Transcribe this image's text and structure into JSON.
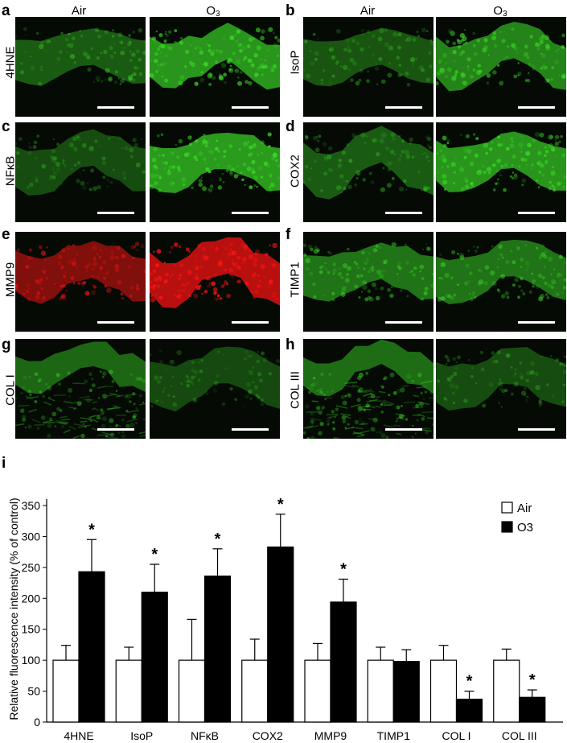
{
  "figure": {
    "panels": [
      {
        "letter": "a",
        "marker": "4HNE",
        "cond_left": "Air",
        "cond_right": "O3",
        "color": "green"
      },
      {
        "letter": "b",
        "marker": "IsoP",
        "cond_left": "Air",
        "cond_right": "O3",
        "color": "green"
      },
      {
        "letter": "c",
        "marker": "NFκB",
        "color": "green"
      },
      {
        "letter": "d",
        "marker": "COX2",
        "color": "green"
      },
      {
        "letter": "e",
        "marker": "MMP9",
        "color": "red"
      },
      {
        "letter": "f",
        "marker": "TIMP1",
        "color": "green"
      },
      {
        "letter": "g",
        "marker": "COL I",
        "color": "green"
      },
      {
        "letter": "h",
        "marker": "COL III",
        "color": "green"
      }
    ],
    "chart_letter": "i"
  },
  "chart_data": {
    "type": "bar",
    "categories": [
      "4HNE",
      "IsoP",
      "NFκB",
      "COX2",
      "MMP9",
      "TIMP1",
      "COL I",
      "COL III"
    ],
    "series": [
      {
        "name": "Air",
        "values": [
          100,
          100,
          100,
          100,
          100,
          100,
          100,
          100
        ],
        "errors": [
          24,
          21,
          66,
          34,
          27,
          21,
          24,
          18
        ],
        "color": "#ffffff"
      },
      {
        "name": "O3",
        "values": [
          243,
          210,
          236,
          283,
          194,
          98,
          37,
          40
        ],
        "errors": [
          52,
          45,
          44,
          53,
          37,
          19,
          13,
          12
        ],
        "color": "#000000"
      }
    ],
    "significant_o3": [
      true,
      true,
      true,
      true,
      true,
      false,
      true,
      true
    ],
    "significance_marker": "*",
    "ylabel": "Relative fluorescence intensity (% of control)",
    "xlabel": "",
    "ylim": [
      0,
      350
    ],
    "yticks": [
      0,
      50,
      100,
      150,
      200,
      250,
      300,
      350
    ],
    "grid": false,
    "legend_position": "top-right"
  }
}
